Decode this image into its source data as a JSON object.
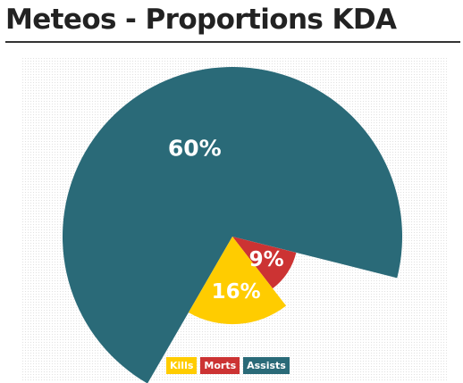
{
  "page": {
    "title": "Meteos - Proportions KDA"
  },
  "chart_data": {
    "type": "pie",
    "variant": "polar-area",
    "title": "Meteos - Proportions KDA",
    "categories": [
      "Kills",
      "Morts",
      "Assists"
    ],
    "values": [
      16,
      9,
      60
    ],
    "labels": [
      "16%",
      "9%",
      "60%"
    ],
    "colors": [
      "#ffcc00",
      "#cc3333",
      "#2a6a78"
    ],
    "legend_position": "bottom-center",
    "grid": false
  }
}
